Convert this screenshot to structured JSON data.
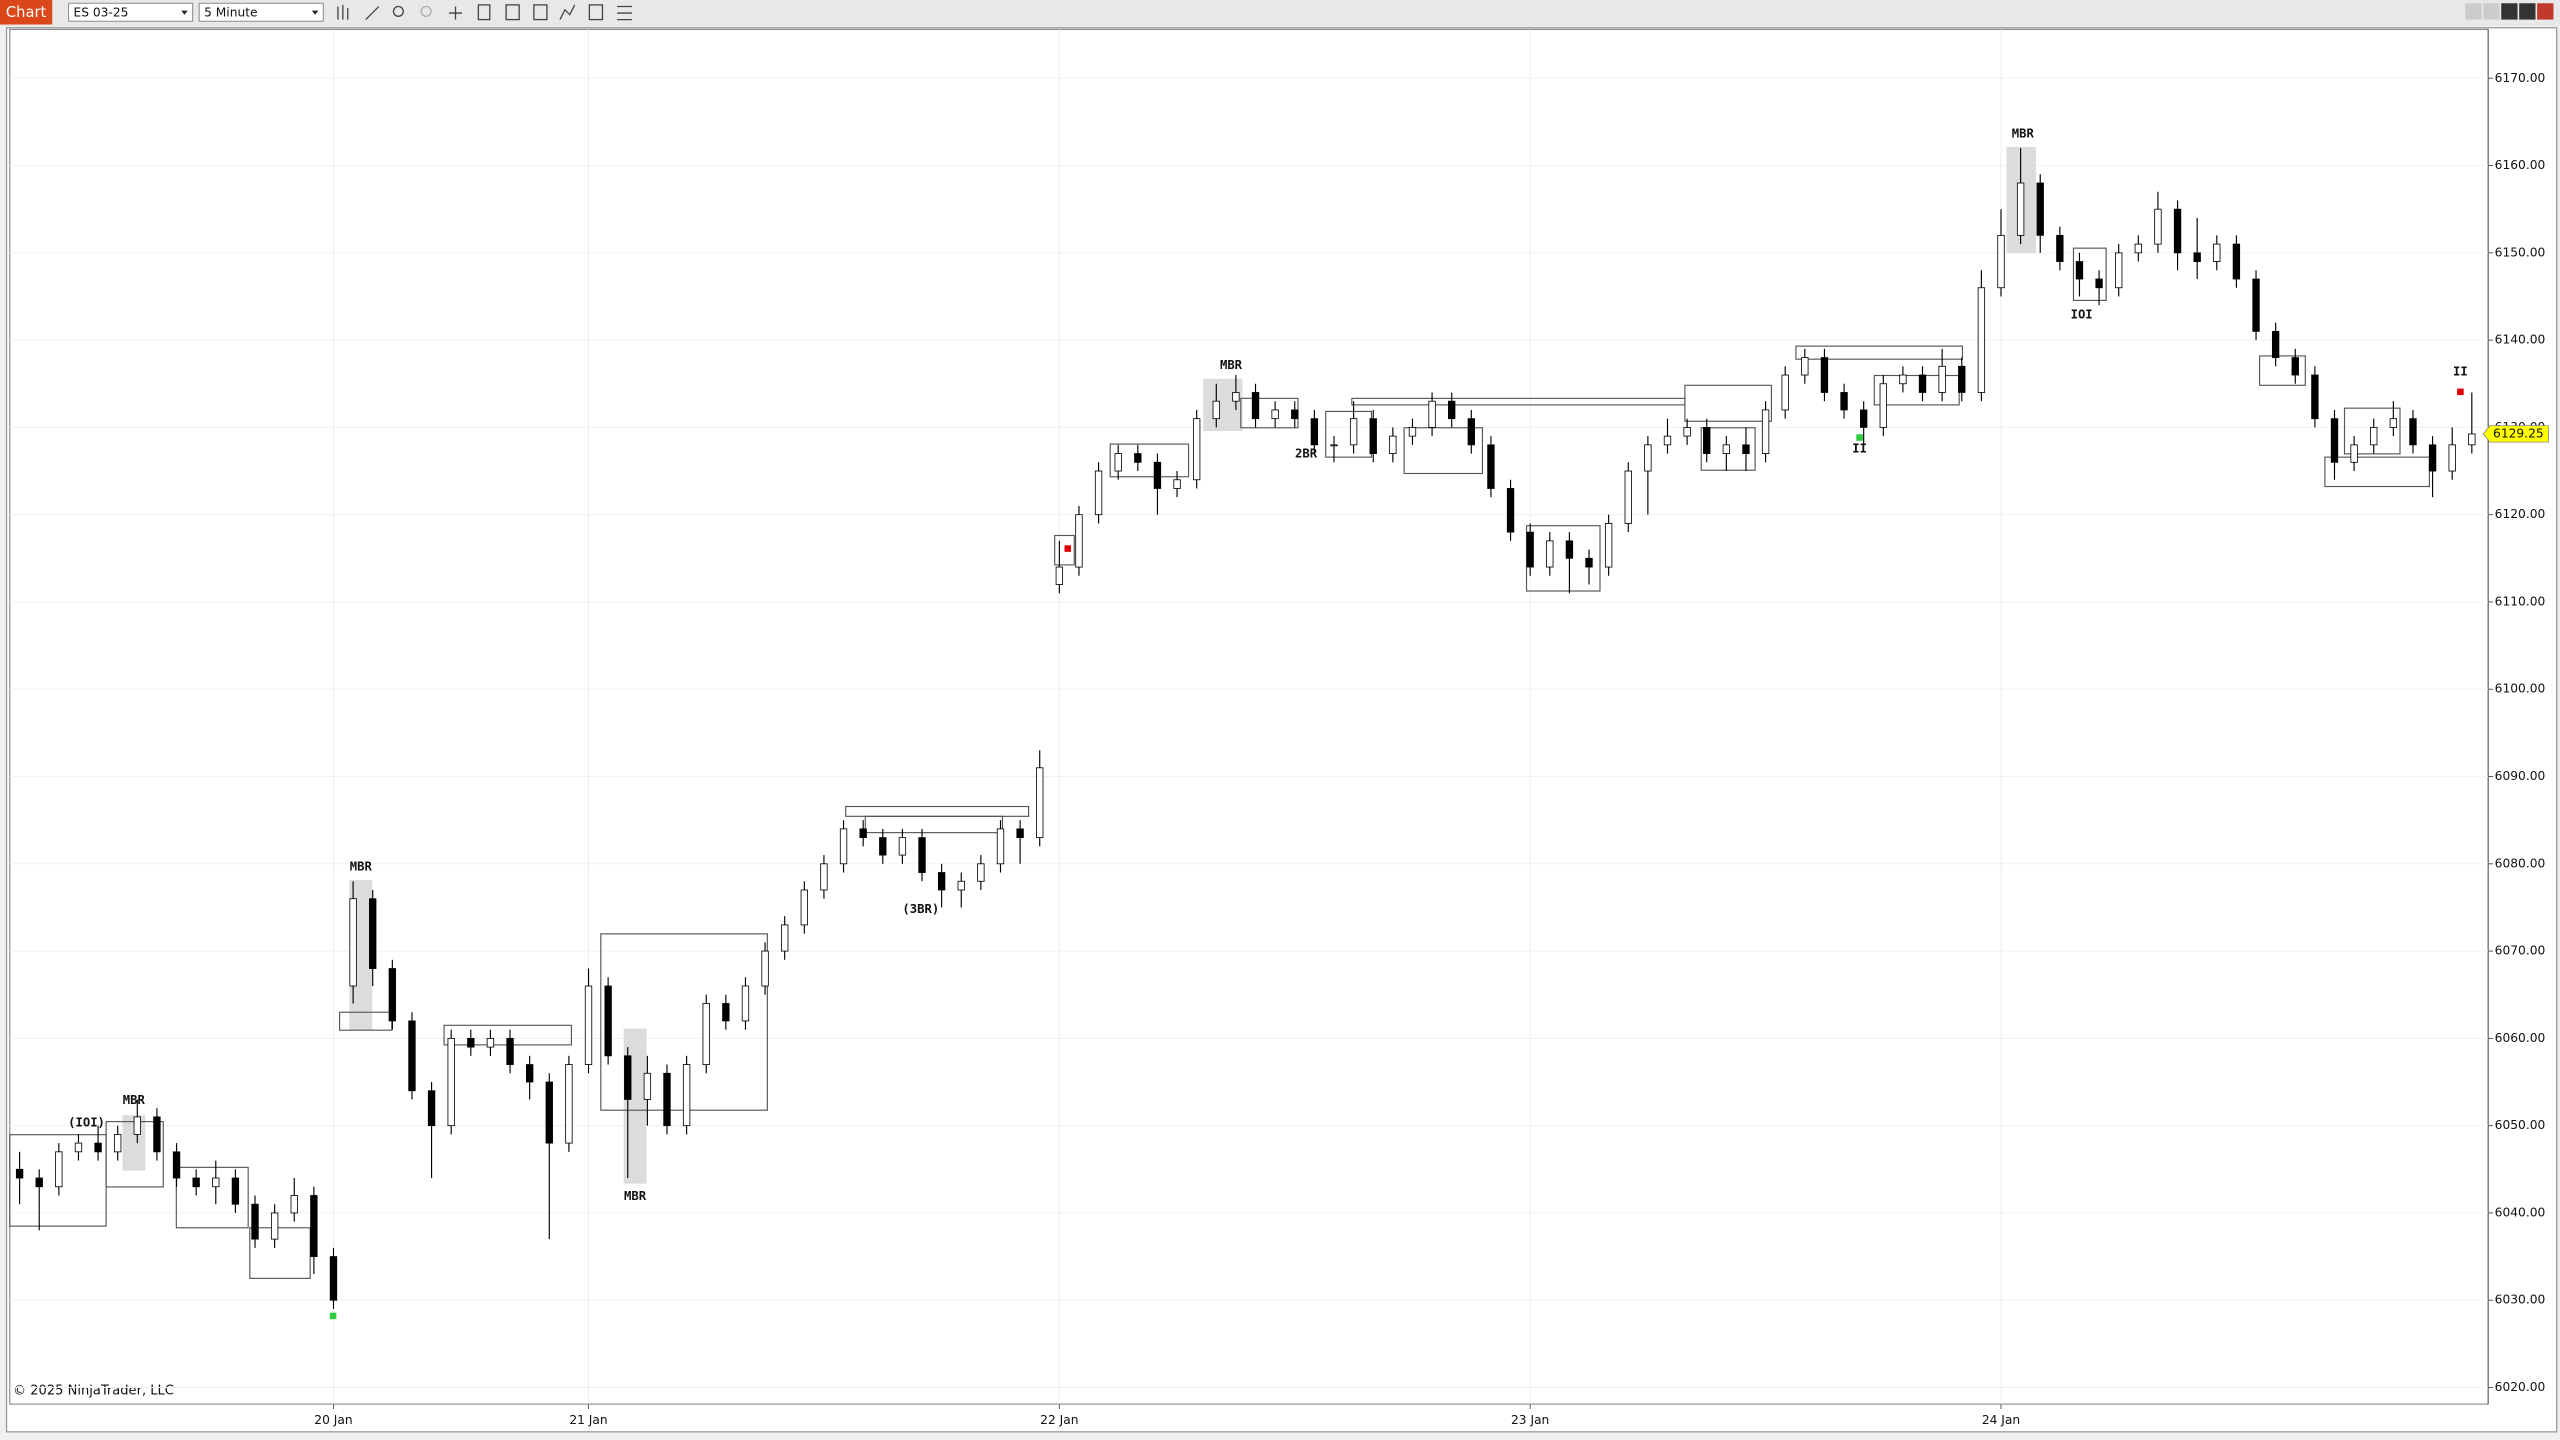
{
  "toolbar": {
    "chart_button": "Chart",
    "instrument": "ES 03-25",
    "interval": "5 Minute"
  },
  "footer": "© 2025 NinjaTrader, LLC",
  "chart_data": {
    "type": "candlestick",
    "categories": [
      null,
      null,
      null,
      null,
      null,
      null,
      null,
      null,
      null,
      null,
      null,
      null,
      null,
      null,
      null,
      null,
      "20 Jan",
      null,
      null,
      null,
      null,
      null,
      null,
      null,
      null,
      null,
      null,
      null,
      null,
      "21 Jan",
      null,
      null,
      null,
      null,
      null,
      null,
      null,
      null,
      null,
      null,
      null,
      null,
      null,
      null,
      null,
      null,
      null,
      null,
      null,
      null,
      null,
      null,
      null,
      "22 Jan",
      null,
      null,
      null,
      null,
      null,
      null,
      null,
      null,
      null,
      null,
      null,
      null,
      null,
      null,
      null,
      null,
      null,
      null,
      null,
      null,
      null,
      null,
      null,
      "23 Jan",
      null,
      null,
      null,
      null,
      null,
      null,
      null,
      null,
      null,
      null,
      null,
      null,
      null,
      null,
      null,
      null,
      null,
      null,
      null,
      null,
      null,
      null,
      null,
      "24 Jan",
      null,
      null,
      null,
      null,
      null,
      null,
      null,
      null,
      null,
      null,
      null,
      null,
      null,
      null,
      null,
      null,
      null,
      null,
      null,
      null,
      null,
      null,
      null,
      null
    ],
    "open": [
      6045,
      6044,
      6043,
      6047,
      6048,
      6047,
      6049,
      6051,
      6047,
      6044,
      6043,
      6044,
      6041,
      6037,
      6040,
      6042,
      6035,
      6066,
      6076,
      6068,
      6062,
      6054,
      6050,
      6060,
      6059,
      6060,
      6057,
      6055,
      6048,
      6057,
      6066,
      6058,
      6053,
      6056,
      6050,
      6057,
      6064,
      6062,
      6066,
      6070,
      6073,
      6077,
      6080,
      6084,
      6083,
      6081,
      6083,
      6079,
      6077,
      6078,
      6080,
      6084,
      6083,
      6112,
      6114,
      6120,
      6125,
      6127,
      6126,
      6123,
      6124,
      6131,
      6133,
      6134,
      6131,
      6132,
      6131,
      6128,
      6128,
      6131,
      6127,
      6129,
      6130,
      6133,
      6131,
      6128,
      6123,
      6118,
      6114,
      6117,
      6115,
      6114,
      6119,
      6125,
      6128,
      6129,
      6130,
      6127,
      6128,
      6127,
      6132,
      6136,
      6138,
      6134,
      6132,
      6130,
      6135,
      6136,
      6134,
      6137,
      6134,
      6146,
      6152,
      6158,
      6152,
      6149,
      6147,
      6146,
      6150,
      6151,
      6155,
      6150,
      6149,
      6151,
      6147,
      6141,
      6138,
      6136,
      6131,
      6126,
      6128,
      6130,
      6131,
      6128,
      6125,
      6128
    ],
    "high": [
      6047,
      6045,
      6048,
      6049,
      6050,
      6050,
      6053,
      6052,
      6048,
      6045,
      6046,
      6045,
      6042,
      6041,
      6044,
      6043,
      6036,
      6078,
      6077,
      6069,
      6063,
      6055,
      6061,
      6061,
      6061,
      6061,
      6058,
      6056,
      6058,
      6068,
      6067,
      6059,
      6058,
      6057,
      6058,
      6065,
      6065,
      6067,
      6071,
      6074,
      6078,
      6081,
      6085,
      6085,
      6084,
      6084,
      6084,
      6080,
      6079,
      6081,
      6085,
      6085,
      6093,
      6117,
      6121,
      6126,
      6128,
      6128,
      6127,
      6125,
      6132,
      6135,
      6136,
      6135,
      6133,
      6133,
      6132,
      6129,
      6133,
      6132,
      6130,
      6131,
      6134,
      6134,
      6132,
      6129,
      6124,
      6119,
      6118,
      6118,
      6116,
      6120,
      6126,
      6129,
      6131,
      6131,
      6131,
      6129,
      6130,
      6133,
      6137,
      6139,
      6139,
      6135,
      6133,
      6136,
      6137,
      6137,
      6139,
      6138,
      6148,
      6155,
      6162,
      6159,
      6153,
      6150,
      6148,
      6151,
      6152,
      6157,
      6156,
      6154,
      6152,
      6152,
      6148,
      6142,
      6139,
      6137,
      6132,
      6129,
      6131,
      6133,
      6132,
      6129,
      6130,
      6134
    ],
    "low": [
      6041,
      6038,
      6042,
      6046,
      6046,
      6046,
      6048,
      6046,
      6043,
      6042,
      6041,
      6040,
      6036,
      6036,
      6039,
      6033,
      6029,
      6064,
      6066,
      6061,
      6053,
      6044,
      6049,
      6058,
      6058,
      6056,
      6053,
      6037,
      6047,
      6056,
      6057,
      6044,
      6050,
      6049,
      6049,
      6056,
      6061,
      6061,
      6065,
      6069,
      6072,
      6076,
      6079,
      6082,
      6080,
      6080,
      6078,
      6075,
      6075,
      6077,
      6079,
      6080,
      6082,
      6111,
      6113,
      6119,
      6124,
      6125,
      6120,
      6122,
      6123,
      6130,
      6132,
      6130,
      6130,
      6130,
      6127,
      6126,
      6127,
      6126,
      6126,
      6128,
      6129,
      6130,
      6127,
      6122,
      6117,
      6113,
      6113,
      6111,
      6112,
      6113,
      6118,
      6120,
      6127,
      6128,
      6126,
      6125,
      6125,
      6126,
      6131,
      6135,
      6133,
      6131,
      6128,
      6129,
      6134,
      6133,
      6133,
      6133,
      6133,
      6145,
      6151,
      6150,
      6148,
      6145,
      6144,
      6145,
      6149,
      6150,
      6148,
      6147,
      6148,
      6146,
      6140,
      6137,
      6135,
      6130,
      6124,
      6125,
      6127,
      6129,
      6127,
      6122,
      6124,
      6127
    ],
    "close": [
      6044,
      6043,
      6047,
      6048,
      6047,
      6049,
      6051,
      6047,
      6044,
      6043,
      6044,
      6041,
      6037,
      6040,
      6042,
      6035,
      6030,
      6076,
      6068,
      6062,
      6054,
      6050,
      6060,
      6059,
      6060,
      6057,
      6055,
      6048,
      6057,
      6066,
      6058,
      6053,
      6056,
      6050,
      6057,
      6064,
      6062,
      6066,
      6070,
      6073,
      6077,
      6080,
      6084,
      6083,
      6081,
      6083,
      6079,
      6077,
      6078,
      6080,
      6084,
      6083,
      6091,
      6114,
      6120,
      6125,
      6127,
      6126,
      6123,
      6124,
      6131,
      6133,
      6134,
      6131,
      6132,
      6131,
      6128,
      6128,
      6131,
      6127,
      6129,
      6130,
      6133,
      6131,
      6128,
      6123,
      6118,
      6114,
      6117,
      6115,
      6114,
      6119,
      6125,
      6128,
      6129,
      6130,
      6127,
      6128,
      6127,
      6132,
      6136,
      6138,
      6134,
      6132,
      6130,
      6135,
      6136,
      6134,
      6137,
      6134,
      6146,
      6152,
      6158,
      6152,
      6149,
      6147,
      6146,
      6150,
      6151,
      6155,
      6150,
      6149,
      6151,
      6147,
      6141,
      6138,
      6136,
      6131,
      6126,
      6128,
      6130,
      6131,
      6128,
      6125,
      6128,
      6129.25
    ],
    "up_color": "#ffffff",
    "down_color": "#000000",
    "wick_color": "#000000",
    "last_price": 6129.25,
    "ylim": [
      6018.1,
      6175.6
    ],
    "yticks": [
      {
        "value": 6020,
        "label": "6020.00"
      },
      {
        "value": 6030,
        "label": "6030.00"
      },
      {
        "value": 6040,
        "label": "6040.00"
      },
      {
        "value": 6050,
        "label": "6050.00"
      },
      {
        "value": 6060,
        "label": "6060.00"
      },
      {
        "value": 6070,
        "label": "6070.00"
      },
      {
        "value": 6080,
        "label": "6080.00"
      },
      {
        "value": 6090,
        "label": "6090.00"
      },
      {
        "value": 6100,
        "label": "6100.00"
      },
      {
        "value": 6110,
        "label": "6110.00"
      },
      {
        "value": 6120,
        "label": "6120.00"
      },
      {
        "value": 6130,
        "label": "6130.00"
      },
      {
        "value": 6140,
        "label": "6140.00"
      },
      {
        "value": 6150,
        "label": "6150.00"
      },
      {
        "value": 6160,
        "label": "6160.00"
      },
      {
        "value": 6170,
        "label": "6170.00"
      }
    ],
    "grid": true,
    "annotations": [
      "(IOI)",
      "MBR",
      "MBR",
      "MBR",
      "(3BR)",
      "MBR",
      "2BR",
      "II",
      "MBR",
      "IOI",
      "II"
    ]
  }
}
